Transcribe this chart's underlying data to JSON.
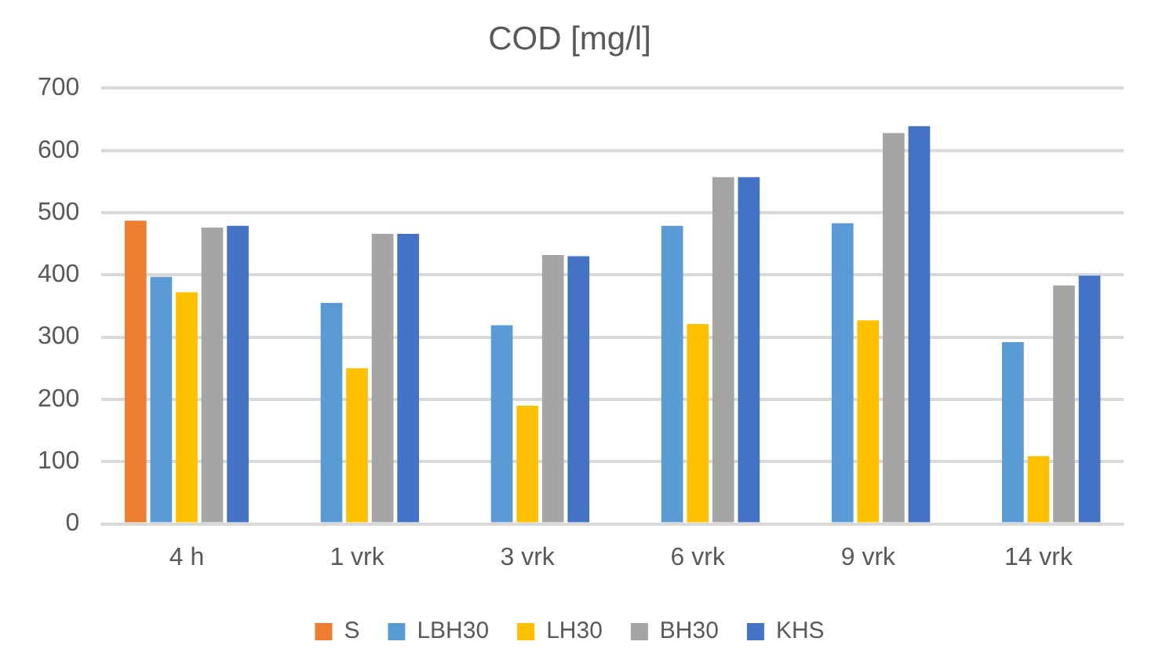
{
  "chart_data": {
    "type": "bar",
    "title": "COD [mg/l]",
    "categories": [
      "4 h",
      "1 vrk",
      "3 vrk",
      "6 vrk",
      "9 vrk",
      "14 vrk"
    ],
    "series": [
      {
        "name": "S",
        "color": "#ed7d31",
        "values": [
          487,
          null,
          null,
          null,
          null,
          null
        ]
      },
      {
        "name": "LBH30",
        "color": "#5b9bd5",
        "values": [
          397,
          355,
          319,
          479,
          483,
          292
        ]
      },
      {
        "name": "LH30",
        "color": "#ffc000",
        "values": [
          372,
          250,
          190,
          321,
          327,
          109
        ]
      },
      {
        "name": "BH30",
        "color": "#a5a5a5",
        "values": [
          476,
          466,
          432,
          557,
          628,
          383
        ]
      },
      {
        "name": "KHS",
        "color": "#4472c4",
        "values": [
          479,
          466,
          430,
          557,
          639,
          399
        ]
      }
    ],
    "ylim": [
      0,
      700
    ],
    "yticks": [
      0,
      100,
      200,
      300,
      400,
      500,
      600,
      700
    ],
    "grid": "y",
    "legend": "bottom"
  }
}
